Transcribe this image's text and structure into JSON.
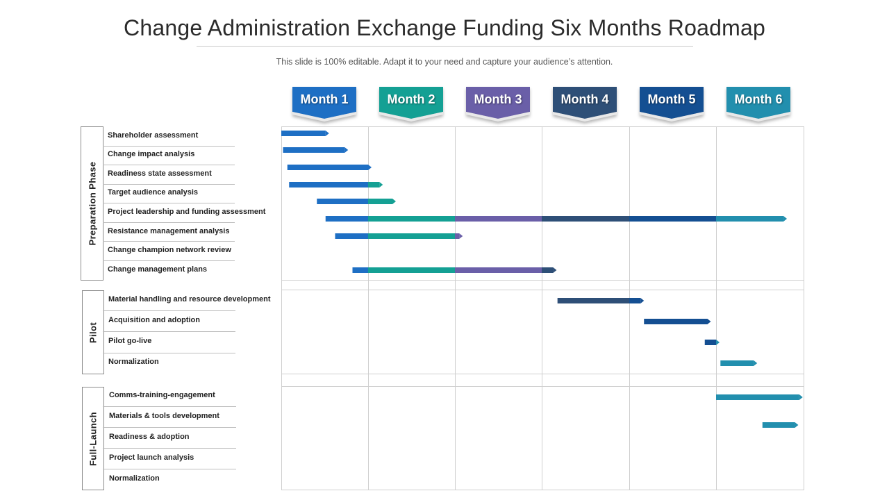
{
  "header": {
    "title": "Change Administration Exchange Funding Six Months Roadmap",
    "subtitle": "This slide is 100% editable. Adapt it to your need and capture your audience’s attention."
  },
  "months": [
    {
      "label": "Month 1",
      "color": "#1e6fc4"
    },
    {
      "label": "Month 2",
      "color": "#14a094"
    },
    {
      "label": "Month 3",
      "color": "#6a5fa8"
    },
    {
      "label": "Month 4",
      "color": "#2e4f77"
    },
    {
      "label": "Month 5",
      "color": "#144f92"
    },
    {
      "label": "Month 6",
      "color": "#228fae"
    }
  ],
  "phases": [
    {
      "name": "Preparation Phase",
      "tasks": [
        {
          "label": "Shareholder assessment",
          "start": 0.0,
          "end": 0.55
        },
        {
          "label": "Change impact analysis",
          "start": 0.02,
          "end": 0.77
        },
        {
          "label": "Readiness state assessment",
          "start": 0.07,
          "end": 1.04
        },
        {
          "label": "Target audience analysis",
          "start": 0.09,
          "end": 1.17
        },
        {
          "label": "Project leadership and funding assessment",
          "start": 0.41,
          "end": 1.32
        },
        {
          "label": "Resistance management analysis",
          "start": 0.51,
          "end": 5.81
        },
        {
          "label": "Change champion network review",
          "start": 0.62,
          "end": 2.09
        },
        {
          "label": "Change management plans",
          "start": 0.82,
          "end": 1.37
        }
      ]
    },
    {
      "name": "Pilot",
      "tasks": [
        {
          "label": "Material handling and resource development",
          "start": 3.18,
          "end": 4.17
        },
        {
          "label": "Acquisition and adoption",
          "start": 4.17,
          "end": 4.94
        },
        {
          "label": "Pilot go-live",
          "start": 4.87,
          "end": 5.04
        },
        {
          "label": "Normalization",
          "start": 5.05,
          "end": 5.47
        }
      ]
    },
    {
      "name": "Full-Launch",
      "tasks": [
        {
          "label": "Comms-training-engagement",
          "start": 5.0,
          "end": 5.99
        },
        {
          "label": "Materials & tools development",
          "start": 5.53,
          "end": 5.94
        },
        {
          "label": "Readiness & adoption",
          "start": null,
          "end": null
        },
        {
          "label": "Project launch analysis",
          "start": null,
          "end": null
        },
        {
          "label": "Normalization",
          "start": null,
          "end": null
        }
      ]
    }
  ],
  "extra_bar": {
    "row_of_phase": 0,
    "row": 7,
    "start": 1.0,
    "end": 3.17
  }
}
